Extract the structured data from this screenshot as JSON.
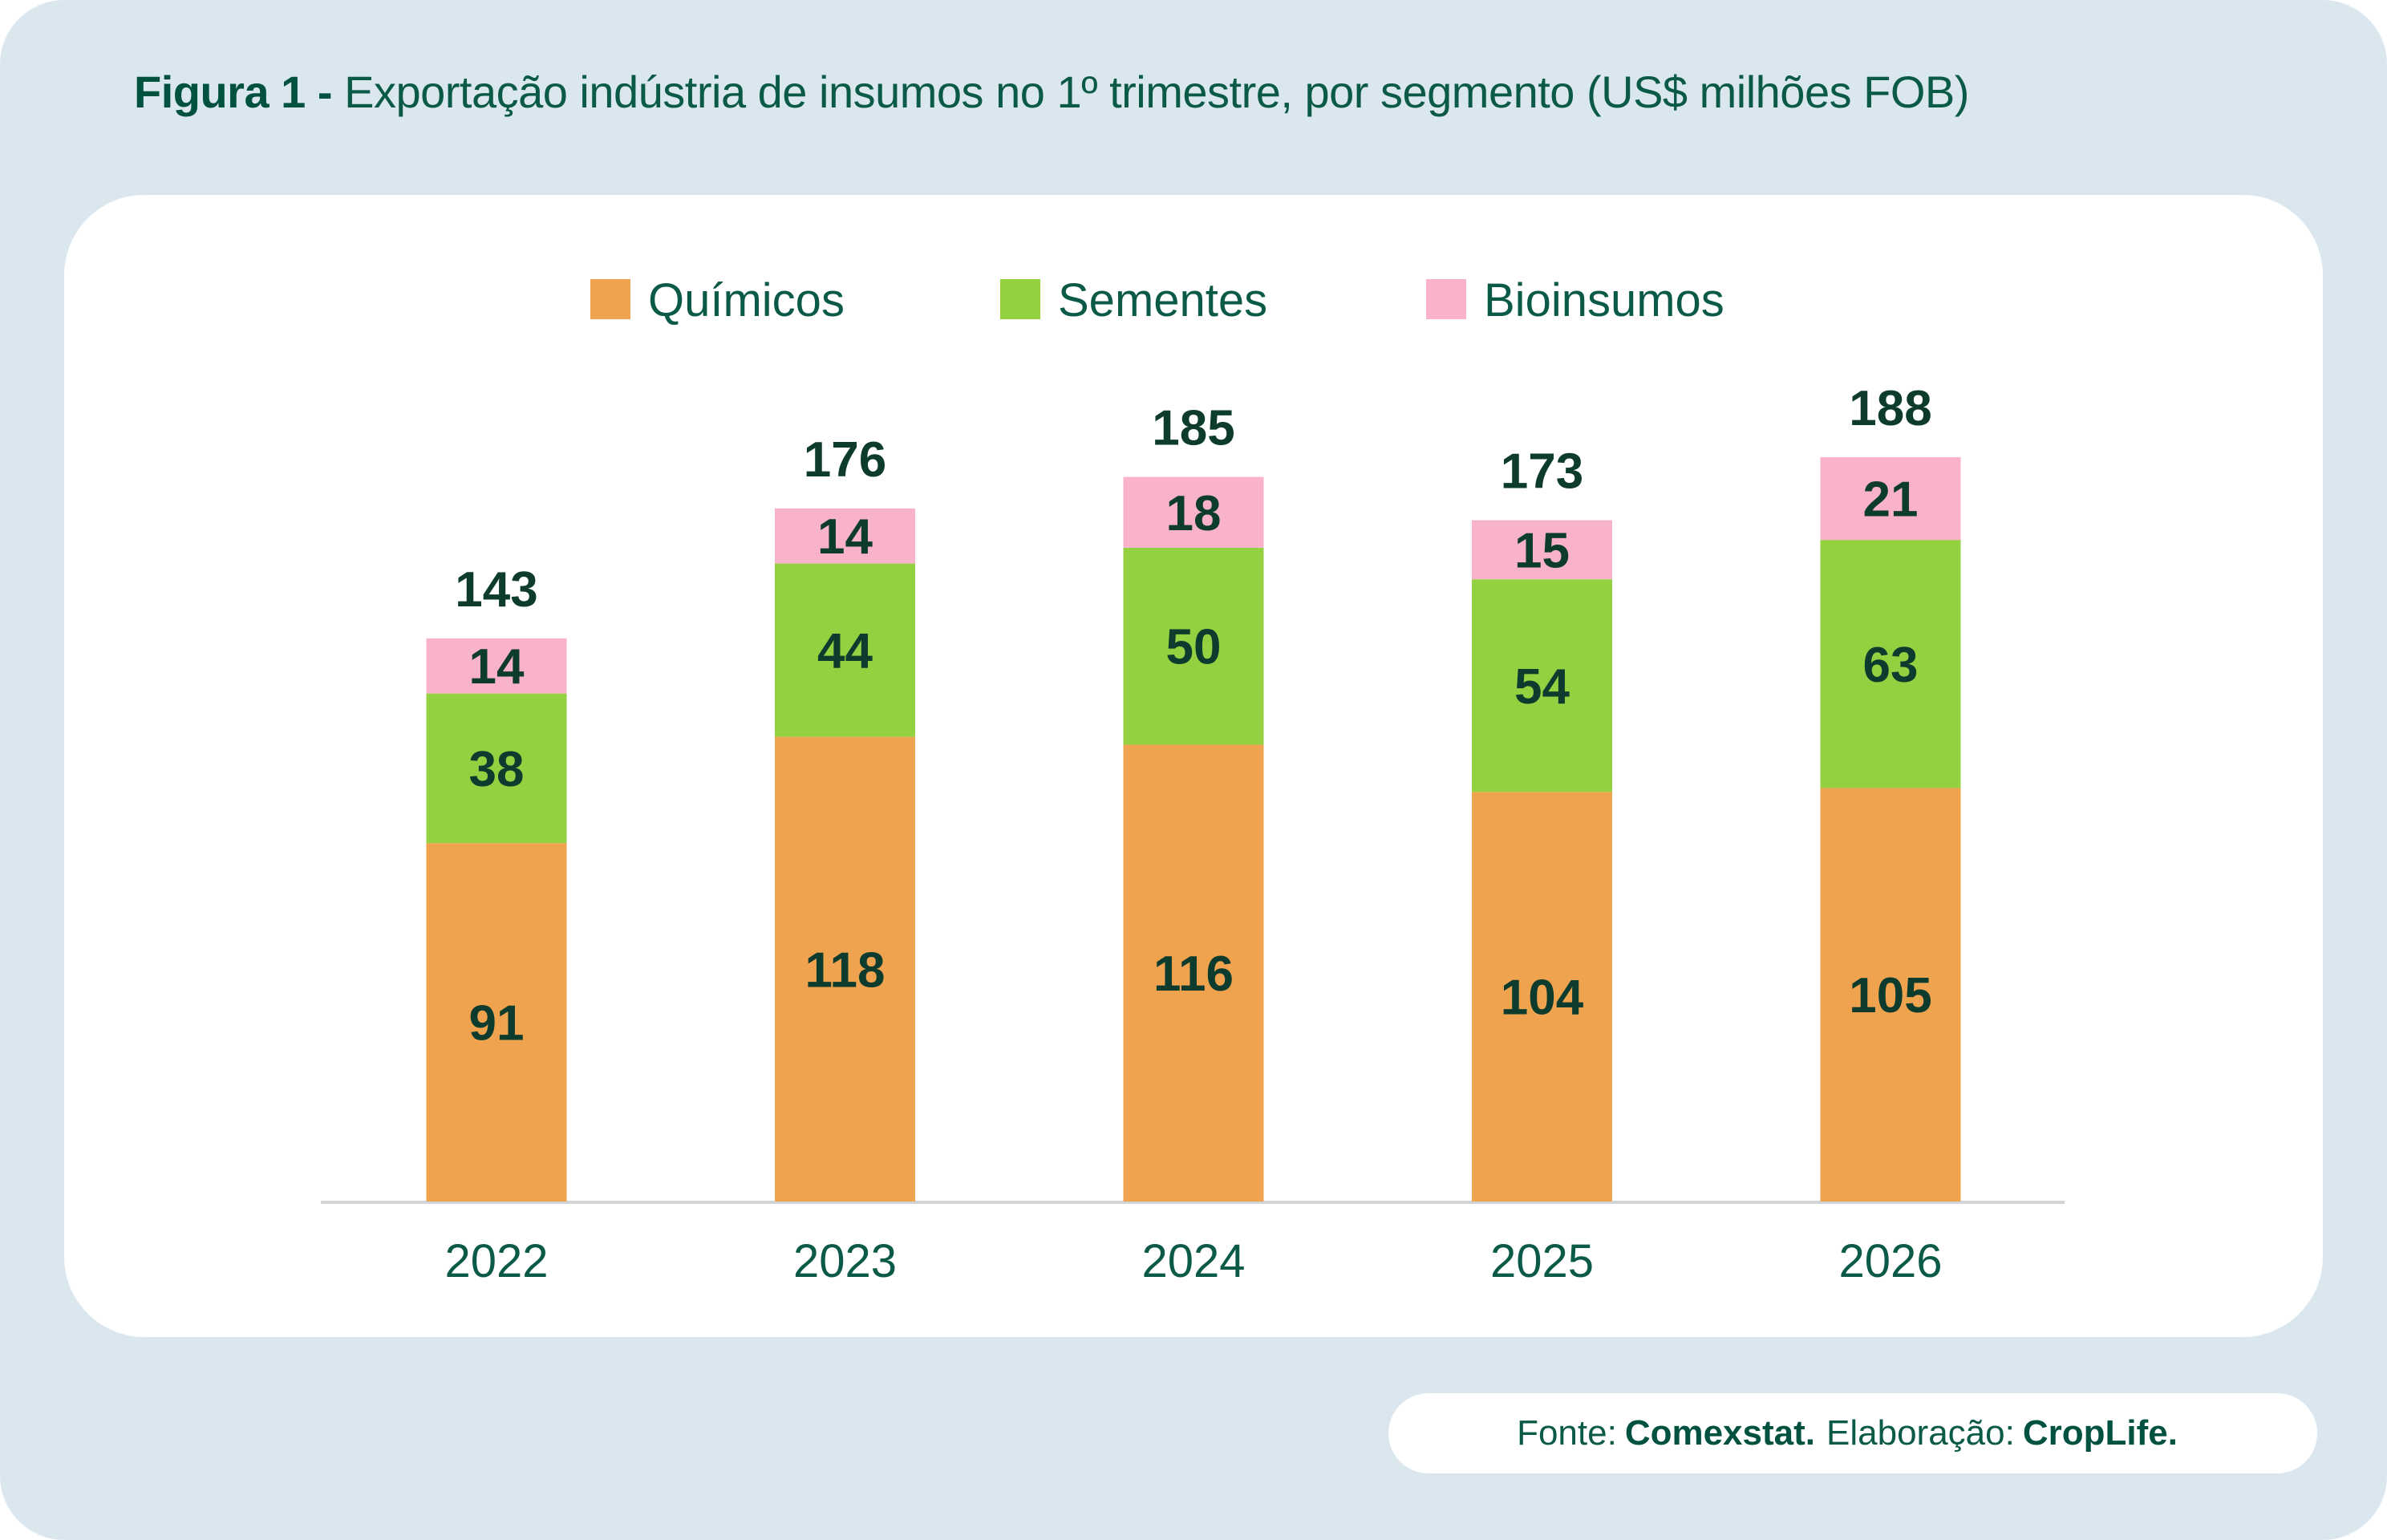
{
  "title": {
    "prefix": "Figura 1 -",
    "text": "Exportação indústria de insumos no 1º trimestre, por segmento (US$ milhões FOB)"
  },
  "footer": {
    "source_label": "Fonte:",
    "source": "Comexstat.",
    "author_label": "Elaboração:",
    "author": "CropLife."
  },
  "chart_data": {
    "type": "bar",
    "stacked": true,
    "categories": [
      "2022",
      "2023",
      "2024",
      "2025",
      "2026"
    ],
    "series": [
      {
        "name": "Químicos",
        "color": "#f0a34e",
        "values": [
          91,
          118,
          116,
          104,
          105
        ]
      },
      {
        "name": "Sementes",
        "color": "#93d141",
        "values": [
          38,
          44,
          50,
          54,
          63
        ]
      },
      {
        "name": "Bioinsumos",
        "color": "#f9b3c8",
        "values": [
          14,
          14,
          18,
          15,
          21
        ]
      }
    ],
    "totals": [
      143,
      176,
      185,
      173,
      188
    ],
    "legend": "top-center",
    "grid": false,
    "ylim": [
      0,
      188
    ]
  }
}
